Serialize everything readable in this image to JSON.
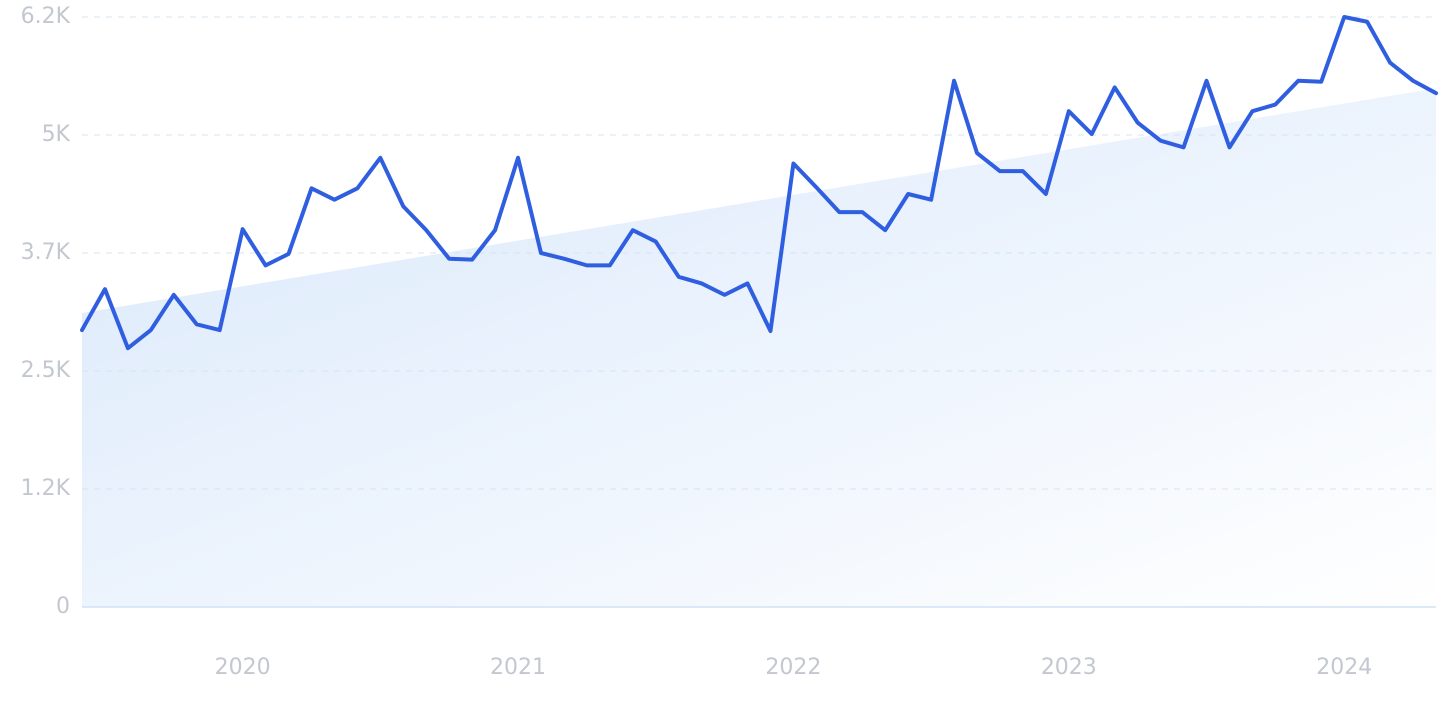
{
  "chart_data": {
    "type": "line",
    "categories": [
      null,
      null,
      null,
      null,
      null,
      null,
      null,
      "2020",
      null,
      null,
      null,
      null,
      null,
      null,
      null,
      null,
      null,
      null,
      null,
      "2021",
      null,
      null,
      null,
      null,
      null,
      null,
      null,
      null,
      null,
      null,
      null,
      "2022",
      null,
      null,
      null,
      null,
      null,
      null,
      null,
      null,
      null,
      null,
      null,
      "2023",
      null,
      null,
      null,
      null,
      null,
      null,
      null,
      null,
      null,
      null,
      null,
      "2024",
      null,
      null,
      null,
      null
    ],
    "series": [
      {
        "color": "#2f5fe0",
        "values": [
          2910,
          3340,
          2720,
          2910,
          3280,
          2970,
          2910,
          3970,
          3590,
          3710,
          4400,
          4280,
          4400,
          4720,
          4210,
          3960,
          3660,
          3650,
          3960,
          4720,
          3720,
          3660,
          3590,
          3590,
          3960,
          3840,
          3470,
          3400,
          3280,
          3400,
          2900,
          4660,
          4410,
          4150,
          4150,
          3960,
          4340,
          4280,
          5530,
          4770,
          4580,
          4580,
          4340,
          5210,
          4970,
          5460,
          5090,
          4900,
          4830,
          5530,
          4830,
          5210,
          5280,
          5530,
          5520,
          6200,
          6150,
          5720,
          5530,
          5400
        ]
      },
      {
        "kind": "trend",
        "color": "#dbe9fb",
        "values": [
          3090,
          null,
          null,
          null,
          null,
          null,
          null,
          null,
          null,
          null,
          null,
          null,
          null,
          null,
          null,
          null,
          null,
          null,
          null,
          null,
          null,
          null,
          null,
          null,
          null,
          null,
          null,
          null,
          null,
          null,
          null,
          null,
          null,
          null,
          null,
          null,
          null,
          null,
          null,
          null,
          null,
          null,
          null,
          null,
          null,
          null,
          null,
          null,
          null,
          null,
          null,
          null,
          null,
          null,
          null,
          null,
          null,
          null,
          null,
          5450
        ]
      }
    ],
    "ylim": [
      0,
      6200
    ],
    "yticks": [
      0,
      {
        "value": 1240,
        "label": "1.2K"
      },
      {
        "value": 2480,
        "label": "2.5K"
      },
      {
        "value": 3720,
        "label": "3.7K"
      },
      {
        "value": 4960,
        "label": "5K"
      },
      {
        "value": 6200,
        "label": "6.2K"
      }
    ],
    "grid": true
  }
}
